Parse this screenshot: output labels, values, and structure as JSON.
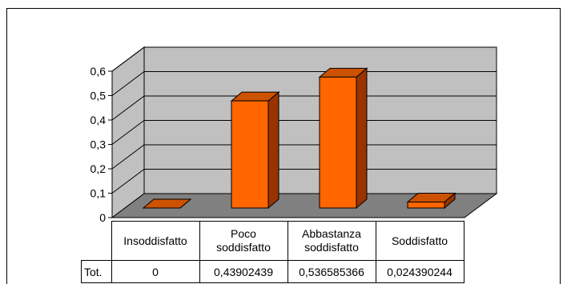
{
  "chart_data": {
    "type": "bar",
    "style": "3d-column",
    "categories": [
      "Insoddisfatto",
      "Poco\nsoddisfatto",
      "Abbastanza\nsoddisfatto",
      "Soddisfatto"
    ],
    "series": [
      {
        "name": "Tot.",
        "values": [
          0,
          0.43902439,
          0.536585366,
          0.024390244
        ]
      }
    ],
    "value_labels": [
      "0",
      "0,43902439",
      "0,536585366",
      "0,024390244"
    ],
    "yticks": [
      "0",
      "0,1",
      "0,2",
      "0,3",
      "0,4",
      "0,5",
      "0,6"
    ],
    "ylim": [
      0,
      0.6
    ],
    "grid": true,
    "legend": "none",
    "data_table": true,
    "colors": {
      "bar_front": "#ff6600",
      "bar_side": "#993300",
      "bar_top": "#cc5200",
      "wall": "#c0c0c0",
      "floor": "#808080",
      "border": "#000000"
    }
  }
}
